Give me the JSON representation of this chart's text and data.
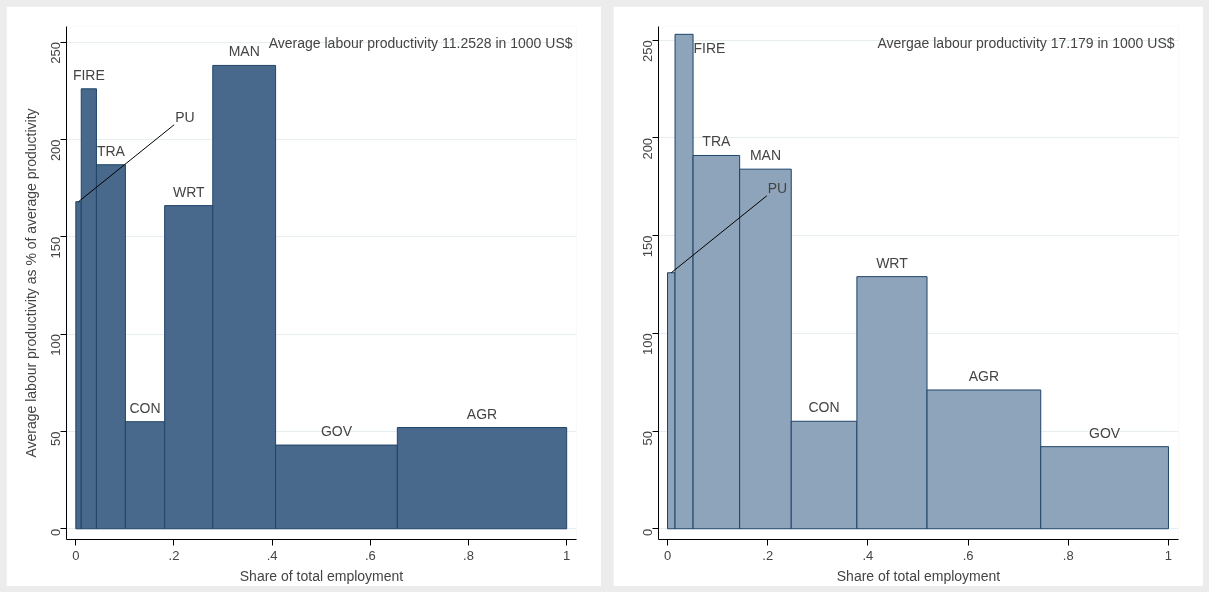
{
  "chart_data": [
    {
      "type": "histogram",
      "xlabel": "Share of total employment",
      "ylabel": "Average labour productivity as % of average productivity",
      "bins": [
        0,
        0.011,
        0.042,
        0.101,
        0.181,
        0.279,
        0.407,
        0.655,
        1.0
      ],
      "values": [
        168,
        226,
        187,
        55,
        166,
        238,
        43,
        52
      ],
      "color": "#48698b",
      "xlim": [
        -0.019,
        1.02
      ],
      "ylim": [
        -5.5,
        258
      ],
      "xticks": [
        0,
        {
          "value": 0.2,
          "label": ".2"
        },
        {
          "value": 0.4,
          "label": ".4"
        },
        {
          "value": 0.6,
          "label": ".6"
        },
        {
          "value": 0.8,
          "label": ".8"
        },
        1
      ],
      "yticks": [
        0,
        50,
        100,
        150,
        200,
        250
      ],
      "grid": "y",
      "annotations": [
        {
          "text": "PU",
          "x": 0.0055,
          "y": 168
        },
        {
          "text": "FIRE",
          "x": 0.0265,
          "y": 226
        },
        {
          "text": "TRA",
          "x": 0.0715,
          "y": 187
        },
        {
          "text": "CON",
          "x": 0.141,
          "y": 55
        },
        {
          "text": "WRT",
          "x": 0.23,
          "y": 166
        },
        {
          "text": "MAN",
          "x": 0.343,
          "y": 238
        },
        {
          "text": "GOV",
          "x": 0.531,
          "y": 43
        },
        {
          "text": "AGR",
          "x": 0.8275,
          "y": 52
        },
        "Average labour productivity 11.2528 in 1000 US$"
      ]
    },
    {
      "type": "histogram",
      "xlabel": "Share of total employment",
      "bins": [
        0,
        0.015,
        0.051,
        0.144,
        0.247,
        0.378,
        0.518,
        0.745,
        1.0
      ],
      "values": [
        131,
        253,
        191,
        184,
        55,
        129,
        71,
        42
      ],
      "color": "#8da4ba",
      "xlim": [
        -0.018,
        1.02
      ],
      "ylim": [
        -5.5,
        257
      ],
      "xticks": [
        0,
        {
          "value": 0.2,
          "label": ".2"
        },
        {
          "value": 0.4,
          "label": ".4"
        },
        {
          "value": 0.6,
          "label": ".6"
        },
        {
          "value": 0.8,
          "label": ".8"
        },
        1
      ],
      "yticks": [
        0,
        50,
        100,
        150,
        200,
        250
      ],
      "grid": "y",
      "annotations": [
        {
          "text": "PU",
          "x": 0.0075,
          "y": 131
        },
        {
          "text": "FIRE",
          "x": 0.033,
          "y": 253
        },
        {
          "text": "TRA",
          "x": 0.0975,
          "y": 191
        },
        {
          "text": "MAN",
          "x": 0.1955,
          "y": 184
        },
        {
          "text": "CON",
          "x": 0.3125,
          "y": 55
        },
        {
          "text": "WRT",
          "x": 0.448,
          "y": 129
        },
        {
          "text": "AGR",
          "x": 0.6315,
          "y": 71
        },
        {
          "text": "GOV",
          "x": 0.8725,
          "y": 42
        },
        "Avergae labour productivity 17.179 in 1000 US$"
      ]
    }
  ]
}
